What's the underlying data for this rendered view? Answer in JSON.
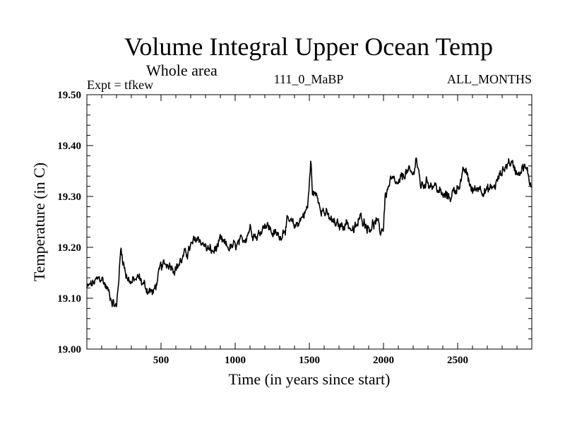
{
  "chart_data": {
    "type": "line",
    "title": "Volume Integral Upper Ocean Temp",
    "subtitle": "Whole area",
    "annotations": {
      "left": "Expt = tfkew",
      "center": "111_0_MaBP",
      "right": "ALL_MONTHS"
    },
    "xlabel": "Time (in years since start)",
    "ylabel": "Temperature (in C)",
    "xlim": [
      0,
      3000
    ],
    "ylim": [
      19.0,
      19.5
    ],
    "xticks": [
      500,
      1000,
      1500,
      2000,
      2500
    ],
    "yticks": [
      19.0,
      19.1,
      19.2,
      19.3,
      19.4,
      19.5
    ],
    "ytick_labels": [
      "19.00",
      "19.10",
      "19.20",
      "19.30",
      "19.40",
      "19.50"
    ],
    "grid": false,
    "series": [
      {
        "color": "#000000",
        "x": [
          0,
          50,
          100,
          150,
          200,
          230,
          260,
          300,
          350,
          400,
          450,
          500,
          550,
          600,
          650,
          700,
          750,
          800,
          850,
          900,
          950,
          1000,
          1050,
          1100,
          1150,
          1200,
          1250,
          1300,
          1350,
          1400,
          1450,
          1490,
          1510,
          1520,
          1550,
          1600,
          1650,
          1700,
          1750,
          1800,
          1850,
          1900,
          1950,
          1980,
          2000,
          2010,
          2050,
          2100,
          2150,
          2200,
          2220,
          2250,
          2300,
          2350,
          2400,
          2450,
          2500,
          2550,
          2600,
          2650,
          2700,
          2750,
          2800,
          2850,
          2900,
          2950,
          3000
        ],
        "values": [
          19.12,
          19.13,
          19.14,
          19.11,
          19.08,
          19.2,
          19.15,
          19.13,
          19.14,
          19.12,
          19.11,
          19.16,
          19.17,
          19.16,
          19.18,
          19.2,
          19.22,
          19.2,
          19.19,
          19.21,
          19.2,
          19.2,
          19.21,
          19.24,
          19.22,
          19.25,
          19.23,
          19.22,
          19.25,
          19.24,
          19.26,
          19.28,
          19.37,
          19.31,
          19.3,
          19.27,
          19.25,
          19.24,
          19.25,
          19.23,
          19.26,
          19.24,
          19.25,
          19.23,
          19.24,
          19.3,
          19.33,
          19.32,
          19.35,
          19.34,
          19.38,
          19.32,
          19.33,
          19.32,
          19.3,
          19.3,
          19.32,
          19.35,
          19.31,
          19.32,
          19.31,
          19.32,
          19.35,
          19.37,
          19.35,
          19.36,
          19.32
        ]
      }
    ]
  }
}
